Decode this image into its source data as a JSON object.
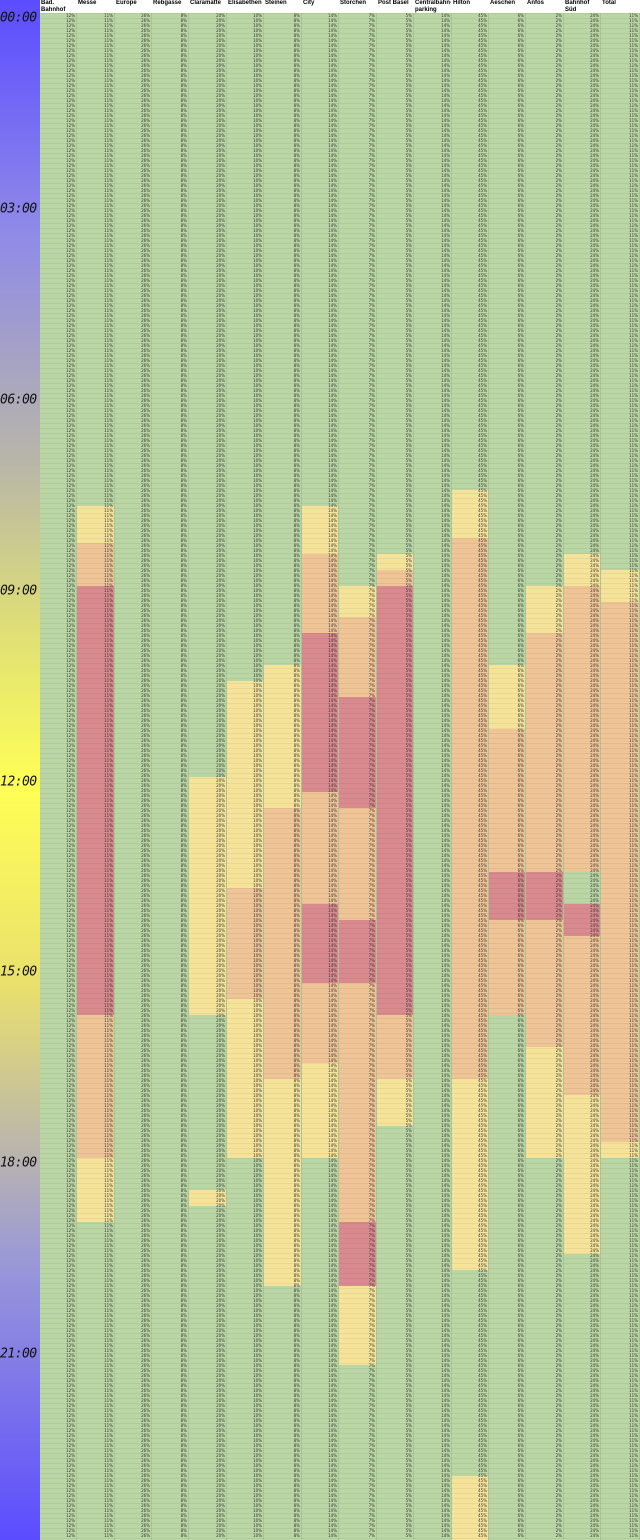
{
  "columns": [
    "Bad. Bahnhof",
    "Messe",
    "Europe",
    "Rebgasse",
    "Claramatte",
    "Elisabethen",
    "Steinen",
    "City",
    "Storchen",
    "Post Basel",
    "Centralbahn-parking",
    "Hilton",
    "Aeschen",
    "Anfos",
    "Bahnhof Süd",
    "Total"
  ],
  "time_labels": [
    "00:00",
    "03:00",
    "06:00",
    "09:00",
    "12:00",
    "15:00",
    "18:00",
    "21:00"
  ],
  "colors": {
    "low": "#b9d6a4",
    "medium": "#f6e39a",
    "high": "#efc496",
    "full": "#d98a8e"
  },
  "occupancy_bands": [
    {
      "column": "Messe",
      "level": "medium",
      "from": "07:45",
      "to": "08:20"
    },
    {
      "column": "Messe",
      "level": "high",
      "from": "08:20",
      "to": "09:00"
    },
    {
      "column": "Messe",
      "level": "full",
      "from": "09:00",
      "to": "15:45"
    },
    {
      "column": "Messe",
      "level": "high",
      "from": "15:45",
      "to": "18:00"
    },
    {
      "column": "Messe",
      "level": "medium",
      "from": "18:00",
      "to": "19:00"
    },
    {
      "column": "Claramatte",
      "level": "medium",
      "from": "12:00",
      "to": "15:45"
    },
    {
      "column": "Claramatte",
      "level": "medium",
      "from": "18:30",
      "to": "18:45"
    },
    {
      "column": "Elisabethen",
      "level": "medium",
      "from": "10:30",
      "to": "13:45"
    },
    {
      "column": "Elisabethen",
      "level": "high",
      "from": "13:45",
      "to": "15:30"
    },
    {
      "column": "Elisabethen",
      "level": "medium",
      "from": "15:30",
      "to": "18:00"
    },
    {
      "column": "Steinen",
      "level": "medium",
      "from": "10:15",
      "to": "12:30"
    },
    {
      "column": "Steinen",
      "level": "high",
      "from": "12:30",
      "to": "16:45"
    },
    {
      "column": "Steinen",
      "level": "medium",
      "from": "16:45",
      "to": "20:00"
    },
    {
      "column": "City",
      "level": "medium",
      "from": "07:45",
      "to": "08:30"
    },
    {
      "column": "City",
      "level": "high",
      "from": "08:30",
      "to": "09:45"
    },
    {
      "column": "City",
      "level": "full",
      "from": "09:45",
      "to": "12:15"
    },
    {
      "column": "City",
      "level": "high",
      "from": "12:15",
      "to": "14:00"
    },
    {
      "column": "City",
      "level": "full",
      "from": "14:00",
      "to": "15:15"
    },
    {
      "column": "City",
      "level": "high",
      "from": "15:15",
      "to": "16:30"
    },
    {
      "column": "City",
      "level": "medium",
      "from": "16:30",
      "to": "18:00"
    },
    {
      "column": "Storchen",
      "level": "medium",
      "from": "09:00",
      "to": "09:30"
    },
    {
      "column": "Storchen",
      "level": "high",
      "from": "09:30",
      "to": "10:45"
    },
    {
      "column": "Storchen",
      "level": "full",
      "from": "10:45",
      "to": "12:30"
    },
    {
      "column": "Storchen",
      "level": "high",
      "from": "12:30",
      "to": "14:15"
    },
    {
      "column": "Storchen",
      "level": "full",
      "from": "14:15",
      "to": "15:15"
    },
    {
      "column": "Storchen",
      "level": "high",
      "from": "15:15",
      "to": "18:00"
    },
    {
      "column": "Storchen",
      "level": "high",
      "from": "18:00",
      "to": "19:00"
    },
    {
      "column": "Storchen",
      "level": "full",
      "from": "19:00",
      "to": "20:00"
    },
    {
      "column": "Storchen",
      "level": "medium",
      "from": "20:00",
      "to": "21:15"
    },
    {
      "column": "Post Basel",
      "level": "medium",
      "from": "08:30",
      "to": "08:45"
    },
    {
      "column": "Post Basel",
      "level": "high",
      "from": "08:45",
      "to": "09:00"
    },
    {
      "column": "Post Basel",
      "level": "full",
      "from": "09:00",
      "to": "15:45"
    },
    {
      "column": "Post Basel",
      "level": "high",
      "from": "15:45",
      "to": "16:45"
    },
    {
      "column": "Post Basel",
      "level": "medium",
      "from": "16:45",
      "to": "17:30"
    },
    {
      "column": "Hilton",
      "level": "medium",
      "from": "07:30",
      "to": "08:15"
    },
    {
      "column": "Hilton",
      "level": "high",
      "from": "08:15",
      "to": "16:45"
    },
    {
      "column": "Hilton",
      "level": "medium",
      "from": "16:45",
      "to": "19:45"
    },
    {
      "column": "Hilton",
      "level": "medium",
      "from": "23:00",
      "to": "24:00"
    },
    {
      "column": "Aeschen",
      "level": "medium",
      "from": "10:15",
      "to": "11:15"
    },
    {
      "column": "Aeschen",
      "level": "high",
      "from": "11:15",
      "to": "15:45"
    },
    {
      "column": "Aeschen",
      "level": "full",
      "from": "13:30",
      "to": "14:15"
    },
    {
      "column": "Anfos",
      "level": "medium",
      "from": "09:00",
      "to": "09:45"
    },
    {
      "column": "Anfos",
      "level": "high",
      "from": "09:45",
      "to": "13:30"
    },
    {
      "column": "Anfos",
      "level": "full",
      "from": "13:30",
      "to": "14:15"
    },
    {
      "column": "Anfos",
      "level": "high",
      "from": "14:15",
      "to": "16:15"
    },
    {
      "column": "Anfos",
      "level": "medium",
      "from": "16:15",
      "to": "18:00"
    },
    {
      "column": "Bahnhof Süd",
      "level": "medium",
      "from": "08:30",
      "to": "09:00"
    },
    {
      "column": "Bahnhof Süd",
      "level": "high",
      "from": "09:00",
      "to": "13:30"
    },
    {
      "column": "Bahnhof Süd",
      "level": "full",
      "from": "14:00",
      "to": "14:30"
    },
    {
      "column": "Bahnhof Süd",
      "level": "high",
      "from": "14:30",
      "to": "17:00"
    },
    {
      "column": "Bahnhof Süd",
      "level": "medium",
      "from": "17:00",
      "to": "19:30"
    },
    {
      "column": "Total",
      "level": "medium",
      "from": "08:45",
      "to": "09:15"
    },
    {
      "column": "Total",
      "level": "high",
      "from": "09:15",
      "to": "17:45"
    },
    {
      "column": "Total",
      "level": "medium",
      "from": "17:45",
      "to": "18:00"
    }
  ],
  "typical_values": {
    "Bad. Bahnhof": "12%",
    "Messe": "11%",
    "Europe": "26%",
    "Rebgasse": "8%",
    "Claramatte": "20%",
    "Elisabethen": "10%",
    "Steinen": "8%",
    "City": "14%",
    "Storchen": "7%",
    "Post Basel": "5%",
    "Centralbahn-parking": "14%",
    "Hilton": "45%",
    "Aeschen": "6%",
    "Anfos": "2%",
    "Bahnhof Süd": "24%",
    "Total": "11%"
  }
}
